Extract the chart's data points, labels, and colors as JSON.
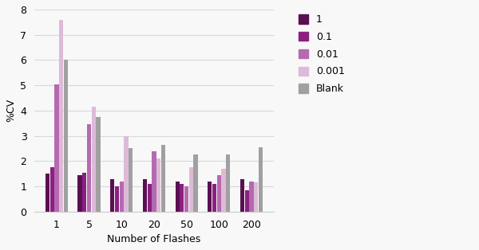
{
  "categories": [
    1,
    5,
    10,
    20,
    50,
    100,
    200
  ],
  "series": {
    "1": [
      1.5,
      1.45,
      1.3,
      1.3,
      1.2,
      1.2,
      1.3
    ],
    "0.1": [
      1.75,
      1.55,
      1.0,
      1.1,
      1.1,
      1.1,
      0.85
    ],
    "0.01": [
      5.05,
      3.45,
      1.2,
      2.4,
      1.0,
      1.45,
      1.2
    ],
    "0.001": [
      7.6,
      4.15,
      3.0,
      2.1,
      1.75,
      1.7,
      1.15
    ],
    "Blank": [
      6.0,
      3.75,
      2.5,
      2.65,
      2.25,
      2.25,
      2.55
    ]
  },
  "colors": {
    "1": "#5a1050",
    "0.1": "#8b2080",
    "0.01": "#b56aaf",
    "0.001": "#ddbbd8",
    "Blank": "#a0a0a0"
  },
  "legend_order": [
    "1",
    "0.1",
    "0.01",
    "0.001",
    "Blank"
  ],
  "ylabel": "%CV",
  "xlabel": "Number of Flashes",
  "ylim": [
    0,
    8
  ],
  "yticks": [
    0,
    1,
    2,
    3,
    4,
    5,
    6,
    7,
    8
  ],
  "background_color": "#f8f8f8",
  "grid_color": "#d8d8d8"
}
